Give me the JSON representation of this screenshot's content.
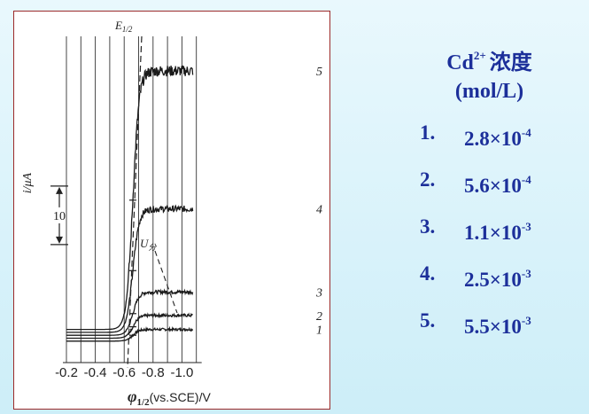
{
  "chart_data": {
    "type": "line",
    "title": "",
    "xlabel_symbol": "φ",
    "xlabel_subscript": "1/2",
    "xlabel_rest": "(vs.SCE)/V",
    "ylabel": "i/μA",
    "xlim": [
      -0.2,
      -1.1
    ],
    "x_ticks": [
      -0.2,
      -0.4,
      -0.6,
      -0.8,
      -1.0
    ],
    "x_tick_labels": [
      "-0.2",
      "-0.4",
      "-0.6",
      "-0.8",
      "-1.0"
    ],
    "grid": true,
    "scale_bar": {
      "label": "10",
      "unit_value": 10
    },
    "annotations": {
      "half_wave": "E",
      "half_wave_sub": "1/2",
      "decomposition": "U",
      "decomposition_sub": "分"
    },
    "series": [
      {
        "label": "1",
        "residual": 2.0,
        "plateau": 4.0
      },
      {
        "label": "2",
        "residual": 2.5,
        "plateau": 6.4
      },
      {
        "label": "3",
        "residual": 3.0,
        "plateau": 10.4
      },
      {
        "label": "4",
        "residual": 3.5,
        "plateau": 24.6
      },
      {
        "label": "5",
        "residual": 4.0,
        "plateau": 48.2
      }
    ]
  },
  "legend_panel": {
    "title_main": "Cd",
    "title_sup": "2+",
    "title_tail": "浓度",
    "unit": "(mol/L)",
    "items": [
      {
        "num": "1.",
        "mantissa": "2.8×10",
        "exp": "-4"
      },
      {
        "num": "2.",
        "mantissa": "5.6×10",
        "exp": "-4"
      },
      {
        "num": "3.",
        "mantissa": "1.1×10",
        "exp": "-3"
      },
      {
        "num": "4.",
        "mantissa": "2.5×10",
        "exp": "-3"
      },
      {
        "num": "5.",
        "mantissa": "5.5×10",
        "exp": "-3"
      }
    ]
  },
  "colors": {
    "text_blue": "#1c2f9a",
    "frame": "#9c2a2a",
    "ink": "#222222"
  }
}
